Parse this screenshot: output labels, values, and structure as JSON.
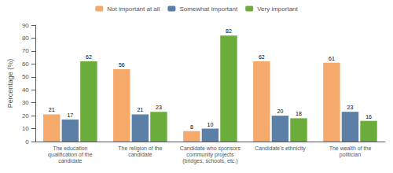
{
  "chart_data": {
    "type": "bar",
    "categories": [
      "The education\nqualification of the\ncandidate",
      "The religion of the\ncandidate",
      "Candidate who sponsors\ncommunity projects\n(bridges, schools, etc.)",
      "Candidate's ethnicity",
      "The wealth of the\npolitician"
    ],
    "series": [
      {
        "name": "Not important at all",
        "color": "#F5A96B",
        "values": [
          21,
          56,
          8,
          62,
          61
        ]
      },
      {
        "name": "Somewhat Important",
        "color": "#5B7FA6",
        "values": [
          17,
          21,
          10,
          20,
          23
        ]
      },
      {
        "name": "Very important",
        "color": "#6AAD3A",
        "values": [
          62,
          23,
          82,
          18,
          16
        ]
      }
    ],
    "ylabel": "Percentage (%)",
    "ylim": [
      0,
      90
    ],
    "yticks": [
      0,
      10,
      20,
      30,
      40,
      50,
      60,
      70,
      80,
      90
    ],
    "grid": false,
    "legend": "top",
    "data_labels": true
  }
}
